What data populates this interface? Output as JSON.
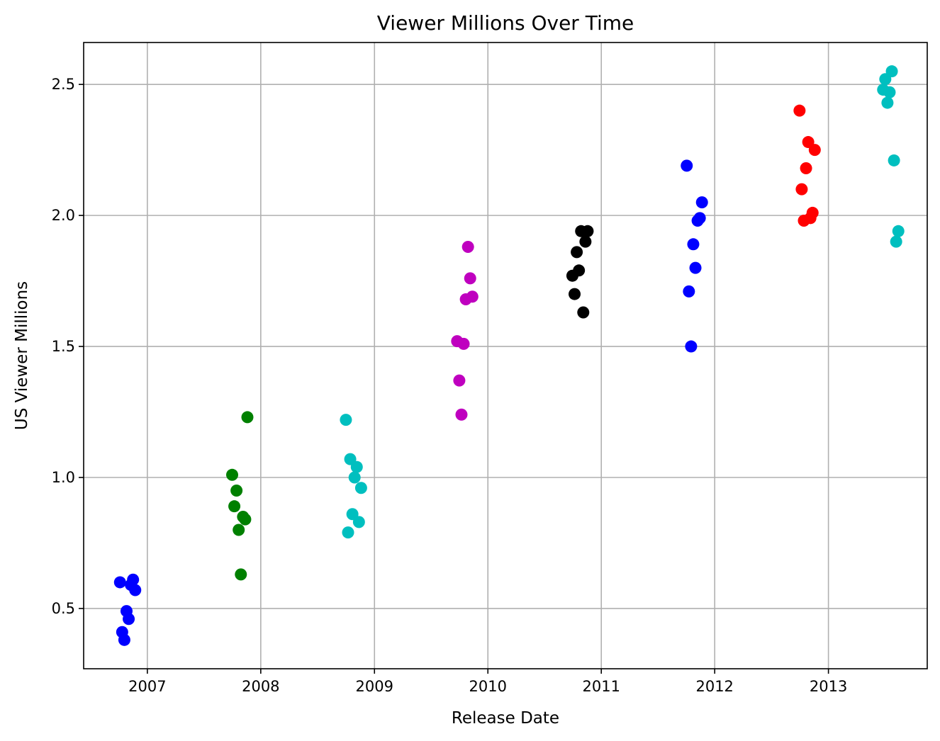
{
  "chart_data": {
    "type": "scatter",
    "title": "Viewer Millions Over Time",
    "xlabel": "Release Date",
    "ylabel": "US Viewer Millions",
    "x_axis_type": "date",
    "xlim": [
      "2006-06-10",
      "2013-11-15"
    ],
    "ylim": [
      0.27,
      2.66
    ],
    "xticks": [
      "2007",
      "2008",
      "2009",
      "2010",
      "2011",
      "2012",
      "2013"
    ],
    "yticks": [
      "0.5",
      "1.0",
      "1.5",
      "2.0",
      "2.5"
    ],
    "grid": true,
    "legend": false,
    "series": [
      {
        "color": "#0000ff",
        "points": [
          {
            "x": "2006-10-05",
            "y": 0.6
          },
          {
            "x": "2006-10-12",
            "y": 0.41
          },
          {
            "x": "2006-10-19",
            "y": 0.38
          },
          {
            "x": "2006-10-26",
            "y": 0.49
          },
          {
            "x": "2006-11-02",
            "y": 0.46
          },
          {
            "x": "2006-11-09",
            "y": 0.59
          },
          {
            "x": "2006-11-16",
            "y": 0.61
          },
          {
            "x": "2006-11-23",
            "y": 0.57
          }
        ]
      },
      {
        "color": "#008000",
        "points": [
          {
            "x": "2007-10-01",
            "y": 1.01
          },
          {
            "x": "2007-10-08",
            "y": 0.89
          },
          {
            "x": "2007-10-15",
            "y": 0.95
          },
          {
            "x": "2007-10-22",
            "y": 0.8
          },
          {
            "x": "2007-10-29",
            "y": 0.63
          },
          {
            "x": "2007-11-05",
            "y": 0.85
          },
          {
            "x": "2007-11-12",
            "y": 0.84
          },
          {
            "x": "2007-11-19",
            "y": 1.23
          }
        ]
      },
      {
        "color": "#00bfbf",
        "points": [
          {
            "x": "2008-10-01",
            "y": 1.22
          },
          {
            "x": "2008-10-08",
            "y": 0.79
          },
          {
            "x": "2008-10-15",
            "y": 1.07
          },
          {
            "x": "2008-10-22",
            "y": 0.86
          },
          {
            "x": "2008-10-29",
            "y": 1.0
          },
          {
            "x": "2008-11-05",
            "y": 1.04
          },
          {
            "x": "2008-11-12",
            "y": 0.83
          },
          {
            "x": "2008-11-19",
            "y": 0.96
          }
        ]
      },
      {
        "color": "#bf00bf",
        "points": [
          {
            "x": "2009-09-24",
            "y": 1.52
          },
          {
            "x": "2009-10-01",
            "y": 1.37
          },
          {
            "x": "2009-10-08",
            "y": 1.24
          },
          {
            "x": "2009-10-15",
            "y": 1.51
          },
          {
            "x": "2009-10-22",
            "y": 1.68
          },
          {
            "x": "2009-10-29",
            "y": 1.88
          },
          {
            "x": "2009-11-05",
            "y": 1.76
          },
          {
            "x": "2009-11-12",
            "y": 1.69
          }
        ]
      },
      {
        "color": "#000000",
        "points": [
          {
            "x": "2010-09-30",
            "y": 1.77
          },
          {
            "x": "2010-10-07",
            "y": 1.7
          },
          {
            "x": "2010-10-14",
            "y": 1.86
          },
          {
            "x": "2010-10-21",
            "y": 1.79
          },
          {
            "x": "2010-10-28",
            "y": 1.94
          },
          {
            "x": "2010-11-04",
            "y": 1.63
          },
          {
            "x": "2010-11-11",
            "y": 1.9
          },
          {
            "x": "2010-11-18",
            "y": 1.94
          }
        ]
      },
      {
        "color": "#0000ff",
        "points": [
          {
            "x": "2011-10-03",
            "y": 2.19
          },
          {
            "x": "2011-10-10",
            "y": 1.71
          },
          {
            "x": "2011-10-17",
            "y": 1.5
          },
          {
            "x": "2011-10-24",
            "y": 1.89
          },
          {
            "x": "2011-10-31",
            "y": 1.8
          },
          {
            "x": "2011-11-07",
            "y": 1.98
          },
          {
            "x": "2011-11-14",
            "y": 1.99
          },
          {
            "x": "2011-11-21",
            "y": 2.05
          }
        ]
      },
      {
        "color": "#ff0000",
        "points": [
          {
            "x": "2012-09-30",
            "y": 2.4
          },
          {
            "x": "2012-10-07",
            "y": 2.1
          },
          {
            "x": "2012-10-14",
            "y": 1.98
          },
          {
            "x": "2012-10-21",
            "y": 2.18
          },
          {
            "x": "2012-10-28",
            "y": 2.28
          },
          {
            "x": "2012-11-04",
            "y": 1.99
          },
          {
            "x": "2012-11-11",
            "y": 2.01
          },
          {
            "x": "2012-11-18",
            "y": 2.25
          }
        ]
      },
      {
        "color": "#00bfbf",
        "points": [
          {
            "x": "2013-06-26",
            "y": 2.48
          },
          {
            "x": "2013-07-03",
            "y": 2.52
          },
          {
            "x": "2013-07-10",
            "y": 2.43
          },
          {
            "x": "2013-07-17",
            "y": 2.47
          },
          {
            "x": "2013-07-24",
            "y": 2.55
          },
          {
            "x": "2013-07-31",
            "y": 2.21
          },
          {
            "x": "2013-08-07",
            "y": 1.9
          },
          {
            "x": "2013-08-14",
            "y": 1.94
          }
        ]
      }
    ]
  }
}
